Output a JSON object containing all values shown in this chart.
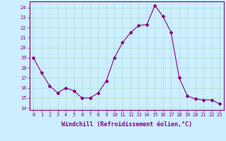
{
  "x": [
    0,
    1,
    2,
    3,
    4,
    5,
    6,
    7,
    8,
    9,
    10,
    11,
    12,
    13,
    14,
    15,
    16,
    17,
    18,
    19,
    20,
    21,
    22,
    23
  ],
  "y": [
    19.0,
    17.5,
    16.2,
    15.5,
    16.0,
    15.7,
    15.0,
    15.0,
    15.5,
    16.7,
    19.0,
    20.5,
    21.5,
    22.2,
    22.3,
    24.2,
    23.1,
    21.5,
    17.0,
    15.2,
    14.9,
    14.8,
    14.8,
    14.4
  ],
  "line_color": "#880088",
  "marker": "D",
  "marker_size": 2,
  "bg_color": "#cceeff",
  "grid_color": "#aaddcc",
  "xlabel": "Windchill (Refroidissement éolien,°C)",
  "xlabel_color": "#880088",
  "ylabel_ticks": [
    14,
    15,
    16,
    17,
    18,
    19,
    20,
    21,
    22,
    23,
    24
  ],
  "xtick_labels": [
    "0",
    "1",
    "2",
    "3",
    "4",
    "5",
    "6",
    "7",
    "8",
    "9",
    "10",
    "11",
    "12",
    "13",
    "14",
    "15",
    "16",
    "17",
    "18",
    "19",
    "20",
    "21",
    "22",
    "23"
  ],
  "ylim": [
    13.8,
    24.6
  ],
  "xlim": [
    -0.5,
    23.5
  ],
  "tick_color": "#880088",
  "tick_fontsize": 5.0,
  "xlabel_fontsize": 6.0
}
